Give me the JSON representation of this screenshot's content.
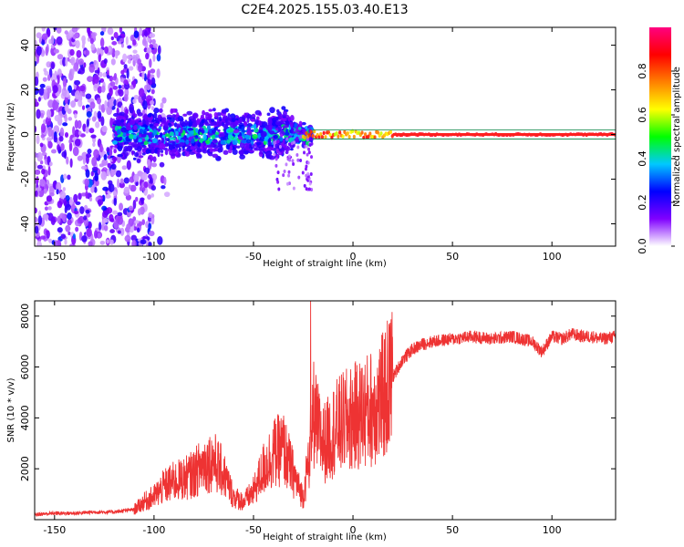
{
  "title": "C2E4.2025.155.03.40.E13",
  "chart_data": [
    {
      "type": "heatmap",
      "xlabel": "Height of straight line (km)",
      "ylabel": "Frequency (Hz)",
      "xlim": [
        -160,
        132
      ],
      "ylim": [
        -50,
        48
      ],
      "x_ticks": [
        -150,
        -100,
        -50,
        0,
        50,
        100
      ],
      "y_ticks": [
        -40,
        -20,
        0,
        20,
        40
      ],
      "colormap": "rainbow (white-violet-blue-cyan-green-yellow-orange-red-magenta)",
      "colorbar": {
        "label": "Normalized spectral amplitude",
        "range": [
          0,
          1
        ],
        "ticks": [
          0.0,
          0.2,
          0.4,
          0.6,
          0.8
        ],
        "colors": [
          "#ffffff",
          "#8000ff",
          "#0000ff",
          "#00c8ff",
          "#00ff00",
          "#ffff00",
          "#ff8000",
          "#ff0000",
          "#ff0080"
        ]
      },
      "regions": [
        {
          "x_range": [
            -160,
            -100
          ],
          "frequency_spread": "broadband noise, amplitude 0.05-0.25"
        },
        {
          "x_range": [
            -115,
            -25
          ],
          "frequency_spread": "concentrated near 0 Hz (about -10 to +10), amplitude 0.2-0.45"
        },
        {
          "x_range": [
            -25,
            20
          ],
          "frequency_spread": "narrow line at 0 Hz, amplitude 0.6-0.9"
        },
        {
          "x_range": [
            20,
            132
          ],
          "frequency_spread": "single line at 0 Hz, amplitude about 0.9"
        }
      ]
    },
    {
      "type": "line",
      "xlabel": "Height of straight line (km)",
      "ylabel": "SNR (10 * v/v)",
      "xlim": [
        -160,
        132
      ],
      "ylim": [
        0,
        8600
      ],
      "x_ticks": [
        -150,
        -100,
        -50,
        0,
        50,
        100
      ],
      "y_ticks": [
        2000,
        4000,
        6000,
        8000
      ],
      "color": "#ee3333",
      "series": [
        {
          "x": [
            -160,
            -150,
            -140,
            -130,
            -120,
            -110,
            -105,
            -100,
            -95,
            -90,
            -85,
            -80,
            -75,
            -70,
            -65,
            -60,
            -55,
            -50,
            -45,
            -40,
            -35,
            -30,
            -27,
            -25,
            -22,
            -20,
            -18,
            -15,
            -12,
            -10,
            -5,
            0,
            5,
            10,
            15,
            20,
            25,
            30,
            35,
            40,
            50,
            60,
            70,
            80,
            90,
            95,
            100,
            105,
            110,
            115,
            120,
            125,
            132
          ],
          "y": [
            200,
            250,
            250,
            300,
            300,
            400,
            700,
            900,
            1300,
            1500,
            1600,
            1800,
            2200,
            2300,
            1800,
            900,
            700,
            1100,
            2000,
            2600,
            2800,
            1800,
            1200,
            900,
            2500,
            4200,
            3600,
            3000,
            3200,
            3500,
            3800,
            4000,
            4200,
            4400,
            4800,
            5600,
            6300,
            6700,
            6900,
            7000,
            7100,
            7200,
            7100,
            7200,
            7000,
            6600,
            7200,
            7100,
            7300,
            7200,
            7200,
            7100,
            7200
          ]
        }
      ]
    }
  ]
}
